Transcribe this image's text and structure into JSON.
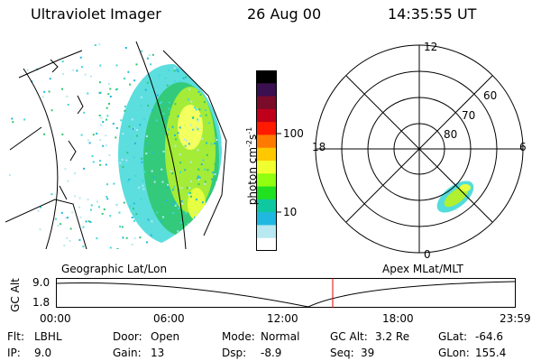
{
  "header": {
    "instrument": "Ultraviolet Imager",
    "date": "26 Aug 00",
    "time": "14:35:55 UT"
  },
  "colorbar": {
    "unit_label": "photon cm",
    "unit_exp1": "-2",
    "unit_mid": "s",
    "unit_exp2": "-1",
    "tick_100": "100",
    "tick_10": "10",
    "colors": [
      "#000000",
      "#3a1050",
      "#7a0c2a",
      "#c0001a",
      "#ff1a00",
      "#ff7a00",
      "#ffc800",
      "#f0ff30",
      "#90ff10",
      "#20e020",
      "#10c8a0",
      "#20b8e0",
      "#b8e8f0",
      "#ffffff"
    ]
  },
  "polar_plot": {
    "label_top": "12",
    "label_left": "18",
    "label_right": "6",
    "label_bottom": "0",
    "lat_60": "60",
    "lat_70": "70",
    "lat_80": "80"
  },
  "timeline": {
    "left_label": "Geographic Lat/Lon",
    "right_label": "Apex MLat/MLT",
    "axis_label": "GC Alt",
    "y_top": "9.0",
    "y_bottom": "1.8",
    "times": [
      "00:00",
      "06:00",
      "12:00",
      "18:00",
      "23:59"
    ],
    "marker_color": "#e00000"
  },
  "footer": {
    "flt_label": "Flt:",
    "flt_value": "LBHL",
    "ip_label": "IP:",
    "ip_value": "9.0",
    "door_label": "Door:",
    "door_value": "Open",
    "gain_label": "Gain:",
    "gain_value": "13",
    "mode_label": "Mode:",
    "mode_value": "Normal",
    "dsp_label": "Dsp:",
    "dsp_value": "-8.9",
    "gcalt_label": "GC Alt:",
    "gcalt_value": "3.2 Re",
    "seq_label": "Seq:",
    "seq_value": "39",
    "glat_label": "GLat:",
    "glat_value": "-64.6",
    "glon_label": "GLon:",
    "glon_value": "155.4"
  }
}
